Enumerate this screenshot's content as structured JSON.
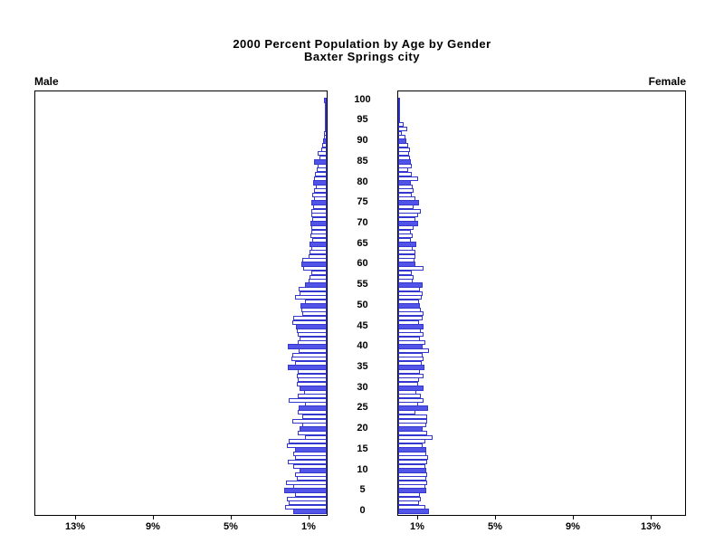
{
  "title": {
    "line1": "2000 Percent Population by Age by Gender",
    "line2": "Baxter Springs city"
  },
  "panel_labels": {
    "male": "Male",
    "female": "Female"
  },
  "colors": {
    "bar_fill": "#5254e8",
    "bar_outline": "#3336cf",
    "axis": "#000000",
    "background": "#ffffff"
  },
  "chart_data": {
    "type": "bar",
    "subtype": "population-pyramid",
    "title": "2000 Percent Population by Age by Gender — Baxter Springs city",
    "unit": "percent of population",
    "orientation": "horizontal, male bars extend left, female bars extend right",
    "highlight_every_5_years": true,
    "age_axis": {
      "min": 0,
      "max": 100,
      "tick_interval": 5,
      "tick_labels": [
        "0",
        "5",
        "10",
        "15",
        "20",
        "25",
        "30",
        "35",
        "40",
        "45",
        "50",
        "55",
        "60",
        "65",
        "70",
        "75",
        "80",
        "85",
        "90",
        "95",
        "100"
      ]
    },
    "value_axis": {
      "min": 0,
      "max": 15,
      "ticks": [
        1,
        5,
        9,
        13
      ],
      "male_tick_labels": [
        "13%",
        "9%",
        "5%",
        "1%"
      ],
      "female_tick_labels": [
        "1%",
        "5%",
        "9%",
        "13%"
      ]
    },
    "series": [
      {
        "name": "Male",
        "side": "left",
        "ages": "single years 0-100",
        "values": [
          1.7,
          2.15,
          1.95,
          2.05,
          1.65,
          2.2,
          1.7,
          2.1,
          1.55,
          1.65,
          1.4,
          1.7,
          2.0,
          1.65,
          1.7,
          1.65,
          2.05,
          1.95,
          1.1,
          1.5,
          1.4,
          1.25,
          1.75,
          1.25,
          1.5,
          1.45,
          1.1,
          1.95,
          1.5,
          1.15,
          1.4,
          1.55,
          1.5,
          1.55,
          1.5,
          2.0,
          1.65,
          1.8,
          1.75,
          1.45,
          2.0,
          1.5,
          1.4,
          1.5,
          1.55,
          1.6,
          1.75,
          1.7,
          1.25,
          1.3,
          1.35,
          1.1,
          1.65,
          1.4,
          1.45,
          1.1,
          0.95,
          0.9,
          0.8,
          1.2,
          1.3,
          1.25,
          0.95,
          0.9,
          0.8,
          0.9,
          0.75,
          0.85,
          0.8,
          0.8,
          0.85,
          0.75,
          0.8,
          0.8,
          0.7,
          0.8,
          0.65,
          0.75,
          0.65,
          0.55,
          0.7,
          0.65,
          0.6,
          0.5,
          0.45,
          0.65,
          0.35,
          0.45,
          0.3,
          0.25,
          0.2,
          0.15,
          0.15,
          0.1,
          0.08,
          0.1,
          0.05,
          0.05,
          0.03,
          0.03,
          0.12
        ]
      },
      {
        "name": "Female",
        "side": "right",
        "ages": "single years 0-100",
        "values": [
          1.6,
          1.4,
          1.05,
          1.15,
          1.1,
          1.45,
          1.4,
          1.5,
          1.45,
          1.5,
          1.45,
          1.4,
          1.5,
          1.55,
          1.45,
          1.45,
          1.25,
          1.4,
          1.75,
          1.5,
          1.25,
          1.45,
          1.5,
          1.5,
          0.9,
          1.55,
          1.0,
          1.3,
          1.15,
          0.95,
          1.3,
          1.0,
          1.05,
          1.3,
          1.1,
          1.35,
          1.2,
          1.3,
          1.25,
          1.6,
          1.25,
          1.4,
          1.1,
          1.3,
          1.15,
          1.3,
          1.05,
          1.25,
          1.3,
          1.15,
          1.1,
          1.05,
          1.2,
          1.25,
          1.1,
          1.25,
          0.75,
          0.8,
          0.7,
          1.3,
          0.9,
          0.85,
          0.9,
          0.9,
          0.75,
          0.95,
          0.65,
          0.75,
          0.65,
          0.8,
          1.0,
          0.9,
          1.0,
          1.15,
          0.8,
          1.05,
          0.9,
          0.7,
          0.8,
          0.75,
          0.65,
          1.0,
          0.7,
          0.5,
          0.7,
          0.65,
          0.6,
          0.55,
          0.6,
          0.5,
          0.4,
          0.35,
          0.2,
          0.45,
          0.3,
          0.1,
          0.05,
          0.05,
          0.03,
          0.03,
          0.08
        ]
      }
    ]
  }
}
